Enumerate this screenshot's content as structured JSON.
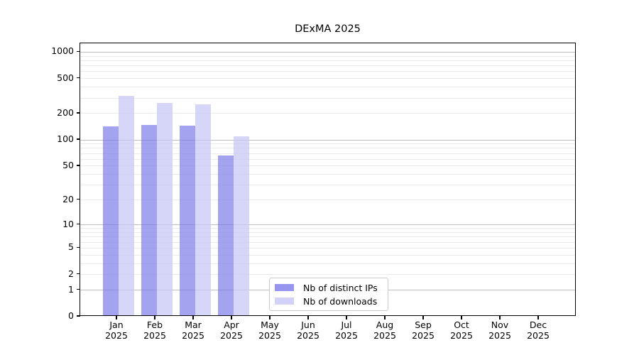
{
  "chart_data": {
    "type": "bar",
    "title": "DExMA 2025",
    "x_year": "2025",
    "categories": [
      "Jan",
      "Feb",
      "Mar",
      "Apr",
      "May",
      "Jun",
      "Jul",
      "Aug",
      "Sep",
      "Oct",
      "Nov",
      "Dec"
    ],
    "y_ticks": [
      0,
      1,
      2,
      5,
      10,
      20,
      50,
      100,
      200,
      500,
      1000
    ],
    "y_scale": "log1p",
    "ylim": [
      0,
      1270
    ],
    "grid": {
      "major_color": "#bdbdbd",
      "minor_color": "#ebebeb"
    },
    "legend_position": "lower-center-inside",
    "series": [
      {
        "name": "Nb of distinct IPs",
        "legend_color": "#9696f0",
        "bar_color": "rgba(120,120,232,0.68)",
        "values": [
          138,
          143,
          140,
          64,
          null,
          null,
          null,
          null,
          null,
          null,
          null,
          null
        ]
      },
      {
        "name": "Nb of downloads",
        "legend_color": "#d2d2f8",
        "bar_color": "rgba(200,200,246,0.75)",
        "values": [
          305,
          256,
          244,
          106,
          null,
          null,
          null,
          null,
          null,
          null,
          null,
          null
        ]
      }
    ]
  }
}
